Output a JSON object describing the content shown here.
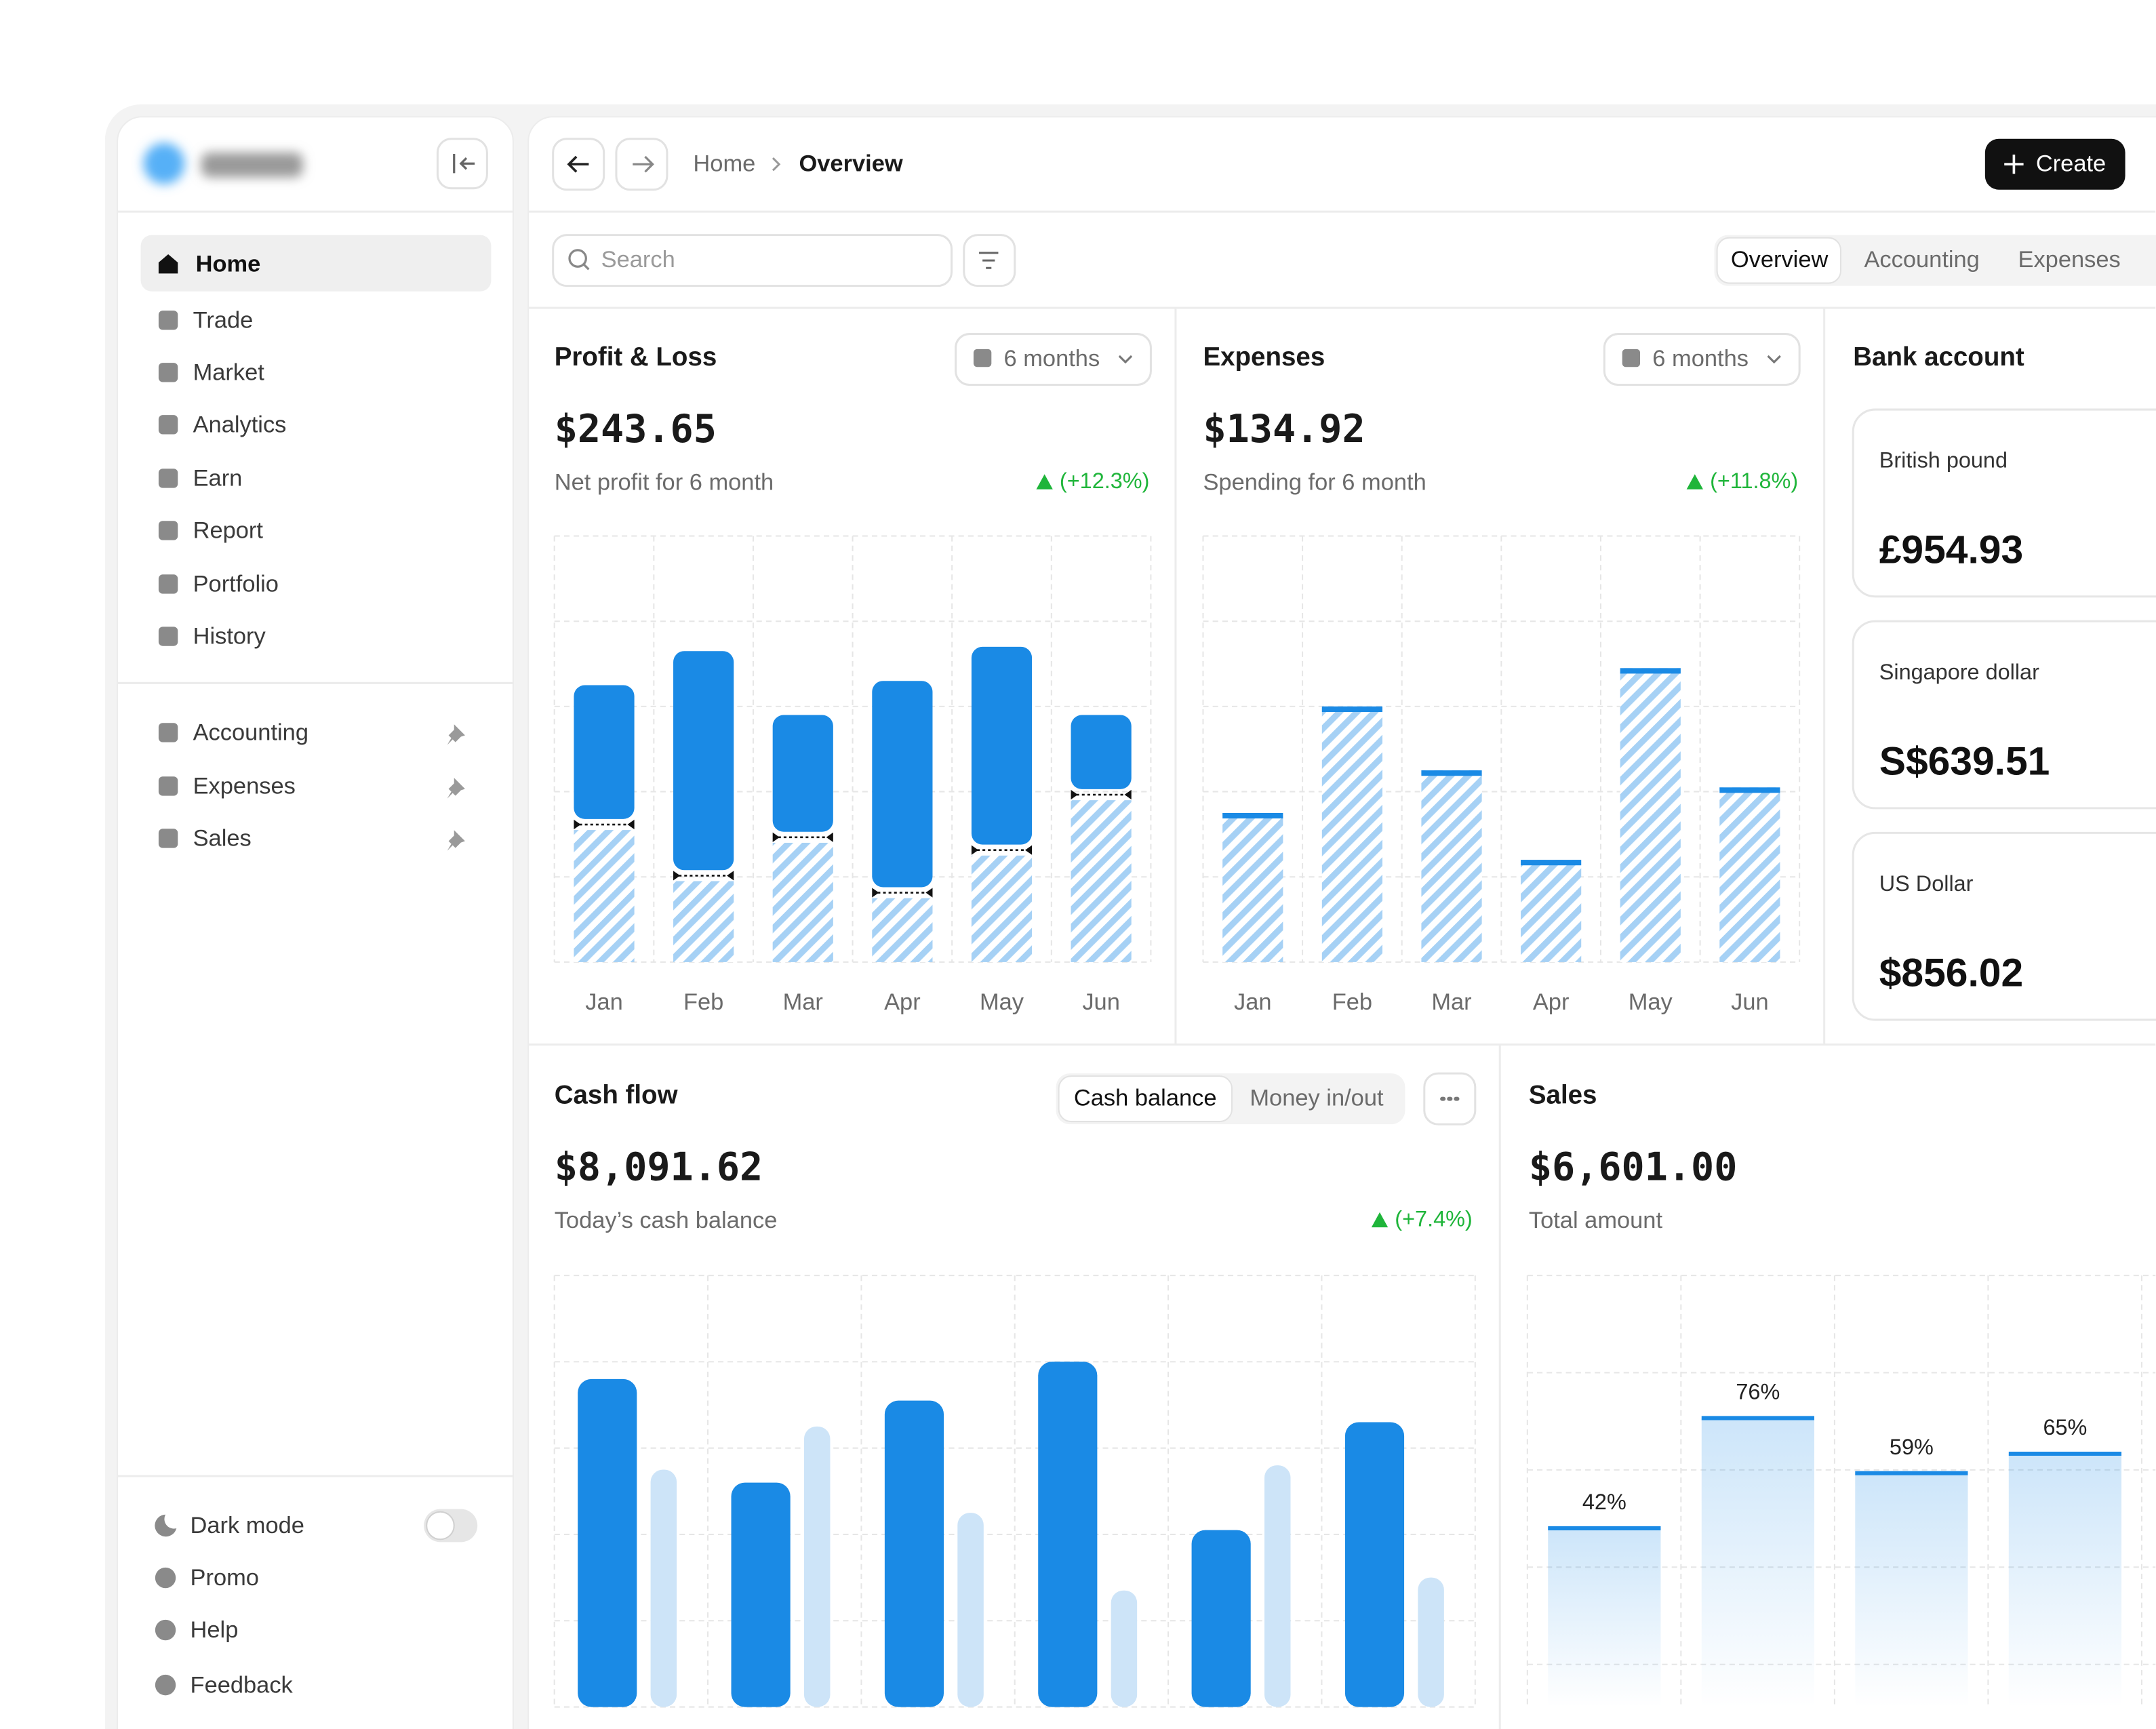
{
  "sidebar": {
    "nav": [
      "Home",
      "Trade",
      "Market",
      "Analytics",
      "Earn",
      "Report",
      "Portfolio",
      "History"
    ],
    "pinned": [
      "Accounting",
      "Expenses",
      "Sales"
    ],
    "dark_mode": "Dark mode",
    "links": [
      "Promo",
      "Help",
      "Feedback"
    ]
  },
  "header": {
    "breadcrumb": [
      "Home",
      "Overview"
    ],
    "create": "Create"
  },
  "toolbar": {
    "search": "Search",
    "tabs": [
      "Overview",
      "Accounting",
      "Expenses"
    ]
  },
  "panels": [
    {
      "period": "6 months",
      "amount": "$243.65",
      "caption": "Net profit for 6 month",
      "change": "(+12.3%)"
    },
    {
      "period": "6 months",
      "amount": "$134.92",
      "caption": "Spending for 6 month",
      "change": "(+11.8%)"
    },
    {
      "toggles": [
        "Cash balance",
        "Money in/out"
      ],
      "amount": "$8,091.62",
      "caption": "Today’s cash balance",
      "change": "(+7.4%)"
    },
    {
      "amount": "$6,601.00",
      "caption": "Total amount"
    }
  ],
  "bank": {
    "title": "Bank account",
    "accounts": [
      {
        "name": "British pound",
        "amount": "£954.93"
      },
      {
        "name": "Singapore dollar",
        "amount": "S$639.51"
      },
      {
        "name": "US Dollar",
        "amount": "$856.02"
      }
    ]
  },
  "chart_data": [
    {
      "type": "bar",
      "title": "Profit & Loss",
      "stacked": true,
      "categories": [
        "Jan",
        "Feb",
        "Mar",
        "Apr",
        "May",
        "Jun"
      ],
      "series": [
        {
          "color": "#a6d1f5",
          "pattern": "hatch",
          "values": [
            31,
            19,
            28,
            15,
            25,
            38
          ]
        },
        {
          "color": "#1a8ae5",
          "values": [
            34,
            54,
            30,
            51,
            49,
            20
          ]
        }
      ],
      "ylim": [
        0,
        100
      ],
      "yticks": [
        0,
        20,
        40,
        60,
        80,
        100
      ],
      "grid": true
    },
    {
      "type": "bar",
      "title": "Expenses",
      "categories": [
        "Jan",
        "Feb",
        "Mar",
        "Apr",
        "May",
        "Jun"
      ],
      "series": [
        {
          "color": "#a6d1f5",
          "pattern": "hatch",
          "cap_color": "#1a8ae5",
          "values": [
            35,
            60,
            45,
            24,
            69,
            41
          ]
        }
      ],
      "ylim": [
        0,
        100
      ],
      "yticks": [
        0,
        20,
        40,
        60,
        80,
        100
      ],
      "grid": true
    },
    {
      "type": "bar",
      "title": "Cash flow",
      "grouped": true,
      "series": [
        {
          "color": "#1a8ae5",
          "values": [
            76,
            52,
            71,
            80,
            41,
            66
          ]
        },
        {
          "color": "#cde4f8",
          "values": [
            55,
            65,
            45,
            27,
            56,
            30
          ]
        }
      ],
      "ylim": [
        0,
        100
      ],
      "yticks": [
        0,
        20,
        40,
        60,
        80,
        100
      ],
      "grid": true
    },
    {
      "type": "bar",
      "title": "Sales",
      "fill": "gradient",
      "values": [
        42,
        76,
        59,
        65
      ],
      "value_labels": [
        "42%",
        "76%",
        "59%",
        "65%"
      ],
      "color": "#1a8ae5",
      "ylim": [
        0,
        120
      ],
      "yticks": [
        0,
        30,
        60,
        90,
        120
      ],
      "grid": true
    }
  ]
}
